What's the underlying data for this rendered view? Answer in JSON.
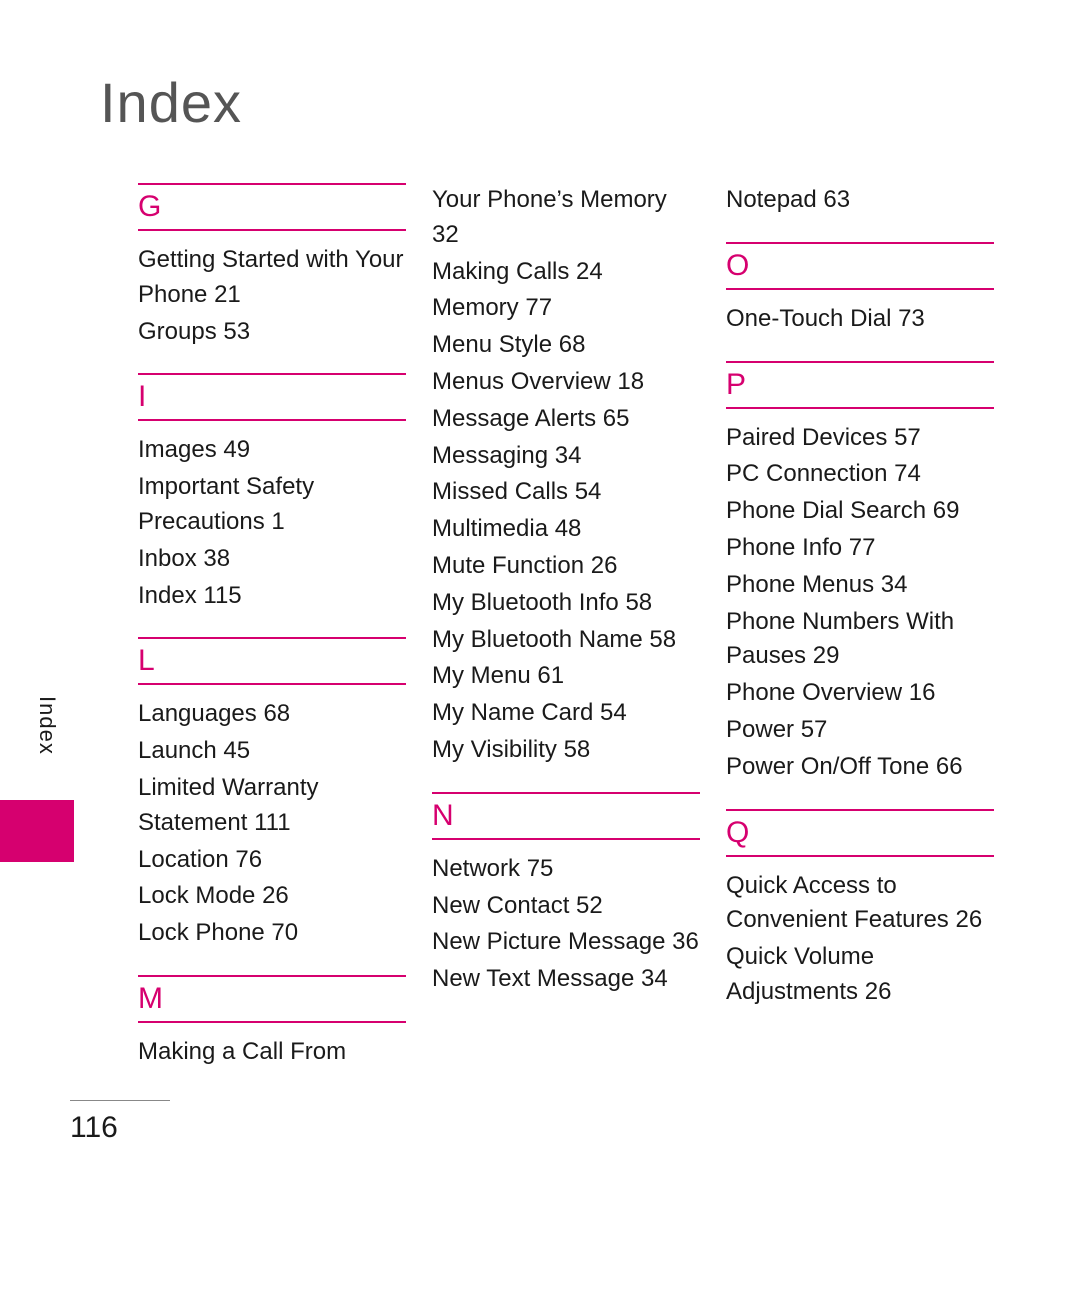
{
  "title": "Index",
  "sideLabel": "Index",
  "pageNumber": "116",
  "colors": {
    "accent": "#d6006f",
    "text": "#1a1a1a",
    "titleColor": "#555555"
  },
  "columns": [
    [
      {
        "letter": "G",
        "entries": [
          "Getting Started with Your Phone 21",
          "Groups 53"
        ]
      },
      {
        "letter": "I",
        "entries": [
          "Images 49",
          "Important Safety Precautions 1",
          "Inbox 38",
          "Index 115"
        ]
      },
      {
        "letter": "L",
        "entries": [
          "Languages 68",
          "Launch 45",
          "Limited Warranty Statement 111",
          "Location 76",
          "Lock Mode 26",
          "Lock Phone 70"
        ]
      },
      {
        "letter": "M",
        "entries": [
          "Making a Call From"
        ]
      }
    ],
    [
      {
        "letter": "",
        "entries": [
          "Your Phone’s Memory 32",
          "Making Calls 24",
          "Memory 77",
          "Menu Style 68",
          "Menus Overview 18",
          "Message Alerts 65",
          "Messaging 34",
          "Missed Calls 54",
          "Multimedia 48",
          "Mute Function 26",
          "My Bluetooth Info 58",
          "My Bluetooth Name 58",
          "My Menu 61",
          "My Name Card 54",
          "My Visibility 58"
        ]
      },
      {
        "letter": "N",
        "entries": [
          "Network 75",
          "New Contact 52",
          "New Picture Message 36",
          "New Text Message 34"
        ]
      }
    ],
    [
      {
        "letter": "",
        "entries": [
          "Notepad 63"
        ]
      },
      {
        "letter": "O",
        "entries": [
          "One-Touch Dial 73"
        ]
      },
      {
        "letter": "P",
        "entries": [
          "Paired Devices 57",
          "PC Connection 74",
          "Phone Dial Search 69",
          "Phone Info 77",
          "Phone Menus 34",
          "Phone Numbers With Pauses 29",
          "Phone Overview 16",
          "Power 57",
          "Power On/Off Tone 66"
        ]
      },
      {
        "letter": "Q",
        "entries": [
          "Quick Access to Convenient Features 26",
          "Quick Volume Adjustments 26"
        ]
      }
    ]
  ]
}
